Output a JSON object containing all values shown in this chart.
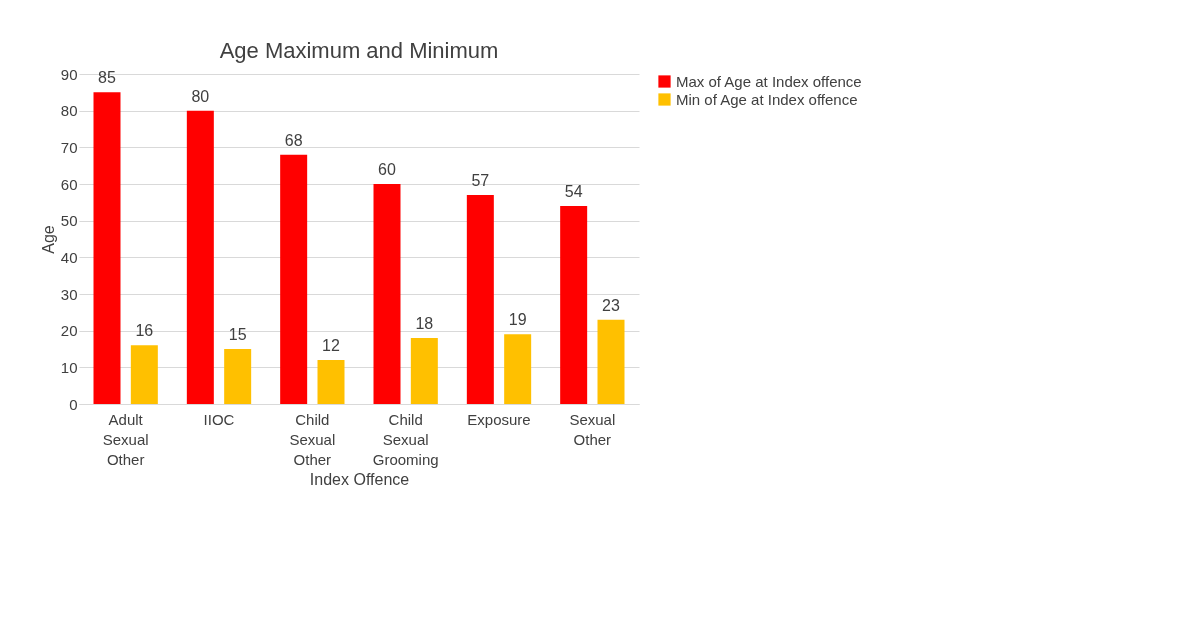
{
  "chart_data": {
    "type": "bar",
    "title": "Age Maximum and Minimum",
    "xlabel": "Index Offence",
    "ylabel": "Age",
    "categories": [
      "Adult Sexual Other",
      "IIOC",
      "Child Sexual Other",
      "Child Sexual Grooming",
      "Exposure",
      "Sexual Other"
    ],
    "series": [
      {
        "name": "Max of Age at Index offence",
        "color": "#ff0000",
        "values": [
          85,
          80,
          68,
          60,
          57,
          54
        ]
      },
      {
        "name": "Min of Age at Index offence",
        "color": "#ffc000",
        "values": [
          16,
          15,
          12,
          18,
          19,
          23
        ]
      }
    ],
    "ylim": [
      0,
      90
    ],
    "yticks": [
      0,
      10,
      20,
      30,
      40,
      50,
      60,
      70,
      80,
      90
    ],
    "grid": "y",
    "legend": "right",
    "data_labels": true
  }
}
